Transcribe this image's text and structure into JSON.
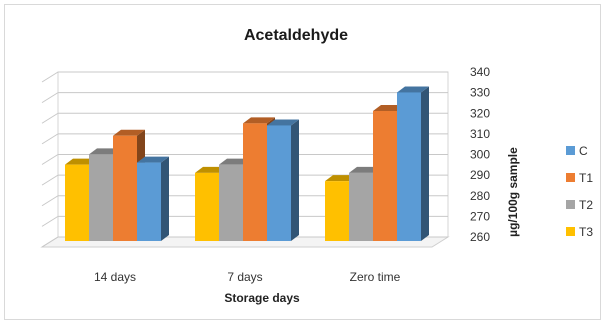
{
  "chart_data": {
    "type": "bar",
    "title": "Acetaldehyde",
    "xlabel": "Storage days",
    "ylabel": "µg/100g sample",
    "categories": [
      "14 days",
      "7 days",
      "Zero time"
    ],
    "series": [
      {
        "name": "T3",
        "values": [
          298,
          294,
          290
        ],
        "color": "#ffc000"
      },
      {
        "name": "T2",
        "values": [
          303,
          298,
          294
        ],
        "color": "#a5a5a5"
      },
      {
        "name": "T1",
        "values": [
          312,
          318,
          324
        ],
        "color": "#ed7d31"
      },
      {
        "name": "C",
        "values": [
          299,
          317,
          333
        ],
        "color": "#5b9bd5"
      }
    ],
    "legend_order": [
      "C",
      "T1",
      "T2",
      "T3"
    ],
    "ylim": [
      260,
      340
    ],
    "yticks": [
      260,
      270,
      280,
      290,
      300,
      310,
      320,
      330,
      340
    ],
    "grid": true,
    "legend_position": "right",
    "style": "3d-column"
  }
}
